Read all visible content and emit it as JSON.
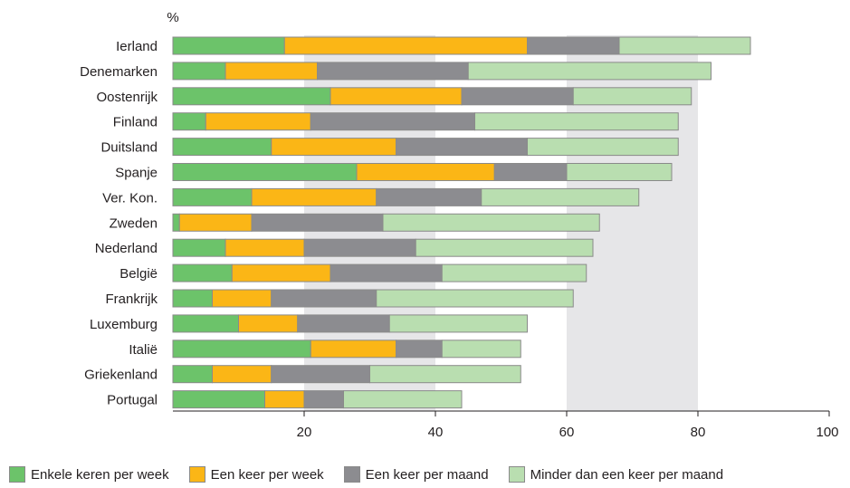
{
  "chart_data": {
    "type": "bar",
    "orientation": "horizontal",
    "stacked": true,
    "unit_label": "%",
    "categories": [
      "Ierland",
      "Denemarken",
      "Oostenrijk",
      "Finland",
      "Duitsland",
      "Spanje",
      "Ver. Kon.",
      "Zweden",
      "Nederland",
      "België",
      "Frankrijk",
      "Luxemburg",
      "Italië",
      "Griekenland",
      "Portugal"
    ],
    "series": [
      {
        "name": "Enkele keren per week",
        "color": "#6cc36a",
        "values": [
          17,
          8,
          24,
          5,
          15,
          28,
          12,
          1,
          8,
          9,
          6,
          10,
          21,
          6,
          14
        ]
      },
      {
        "name": "Een keer per week",
        "color": "#fbb616",
        "values": [
          37,
          14,
          20,
          16,
          19,
          21,
          19,
          11,
          12,
          15,
          9,
          9,
          13,
          9,
          6
        ]
      },
      {
        "name": "Een keer per maand",
        "color": "#8c8c90",
        "values": [
          14,
          23,
          17,
          25,
          20,
          11,
          16,
          20,
          17,
          17,
          16,
          14,
          7,
          15,
          6
        ]
      },
      {
        "name": "Minder dan een keer per maand",
        "color": "#b9deb0",
        "values": [
          20,
          37,
          18,
          31,
          23,
          16,
          24,
          33,
          27,
          22,
          30,
          21,
          12,
          23,
          18
        ]
      }
    ],
    "xlim": [
      0,
      100
    ],
    "xticks": [
      20,
      40,
      60,
      80,
      100
    ],
    "grid": "alternating shaded bands every 20",
    "legend_position": "bottom"
  }
}
